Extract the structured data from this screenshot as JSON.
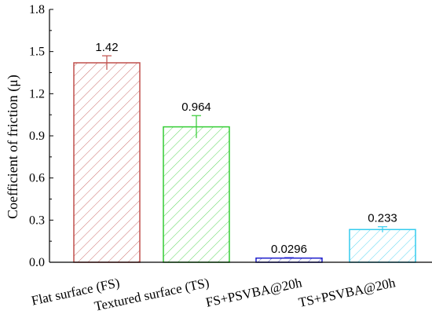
{
  "chart_data": {
    "type": "bar",
    "categories": [
      "Flat surface (FS)",
      "Textured surface (TS)",
      "FS+PSVBA@20h",
      "TS+PSVBA@20h"
    ],
    "values": [
      1.42,
      0.964,
      0.0296,
      0.233
    ],
    "value_labels": [
      "1.42",
      "0.964",
      "0.0296",
      "0.233"
    ],
    "errors": [
      0.05,
      0.08,
      0.003,
      0.02
    ],
    "colors": [
      "#c0504d",
      "#33cc33",
      "#1f1fcc",
      "#33ccee"
    ],
    "ylabel": "Coefficient of friction (μ)",
    "ylim": [
      0,
      1.8
    ],
    "yticks": [
      "0.0",
      "0.3",
      "0.6",
      "0.9",
      "1.2",
      "1.5",
      "1.8"
    ],
    "grid": false,
    "hatch": "diagonal"
  }
}
